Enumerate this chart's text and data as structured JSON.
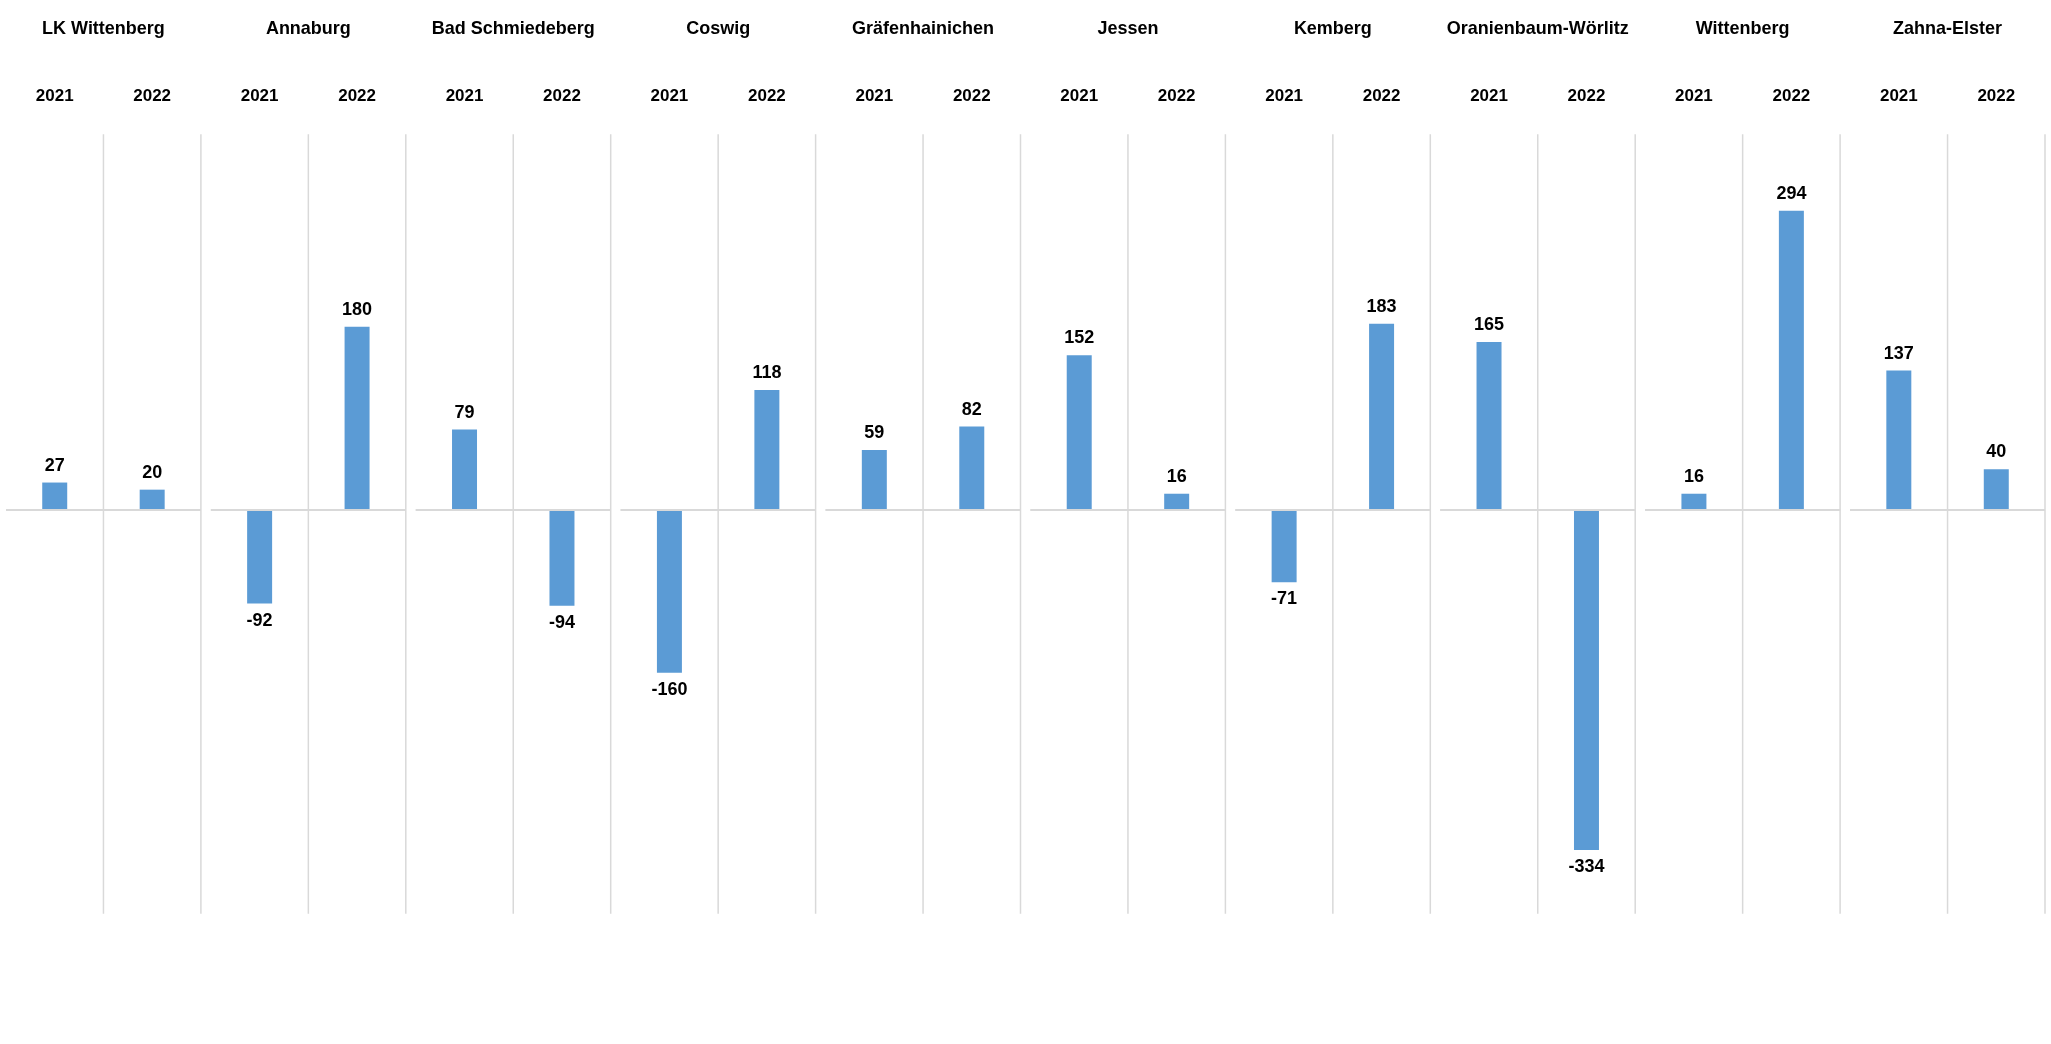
{
  "chart_data": [
    {
      "type": "bar",
      "title": "LK Wittenberg",
      "categories": [
        "2021",
        "2022"
      ],
      "values": [
        27,
        20
      ],
      "color": "#5b9bd5",
      "data_labels": true
    },
    {
      "type": "bar",
      "title": "Annaburg",
      "categories": [
        "2021",
        "2022"
      ],
      "values": [
        -92,
        180
      ],
      "color": "#5b9bd5",
      "data_labels": true
    },
    {
      "type": "bar",
      "title": "Bad Schmiedeberg",
      "categories": [
        "2021",
        "2022"
      ],
      "values": [
        79,
        -94
      ],
      "color": "#5b9bd5",
      "data_labels": true
    },
    {
      "type": "bar",
      "title": "Coswig",
      "categories": [
        "2021",
        "2022"
      ],
      "values": [
        -160,
        118
      ],
      "color": "#5b9bd5",
      "data_labels": true
    },
    {
      "type": "bar",
      "title": "Gräfenhainichen",
      "categories": [
        "2021",
        "2022"
      ],
      "values": [
        59,
        82
      ],
      "color": "#5b9bd5",
      "data_labels": true
    },
    {
      "type": "bar",
      "title": "Jessen",
      "categories": [
        "2021",
        "2022"
      ],
      "values": [
        152,
        16
      ],
      "color": "#5b9bd5",
      "data_labels": true
    },
    {
      "type": "bar",
      "title": "Kemberg",
      "categories": [
        "2021",
        "2022"
      ],
      "values": [
        -71,
        183
      ],
      "color": "#5b9bd5",
      "data_labels": true
    },
    {
      "type": "bar",
      "title": "Oranienbaum-Wörlitz",
      "categories": [
        "2021",
        "2022"
      ],
      "values": [
        165,
        -334
      ],
      "color": "#5b9bd5",
      "data_labels": true
    },
    {
      "type": "bar",
      "title": "Wittenberg",
      "categories": [
        "2021",
        "2022"
      ],
      "values": [
        16,
        294
      ],
      "color": "#5b9bd5",
      "data_labels": true
    },
    {
      "type": "bar",
      "title": "Zahna-Elster",
      "categories": [
        "2021",
        "2022"
      ],
      "values": [
        137,
        40
      ],
      "color": "#5b9bd5",
      "data_labels": true
    }
  ]
}
